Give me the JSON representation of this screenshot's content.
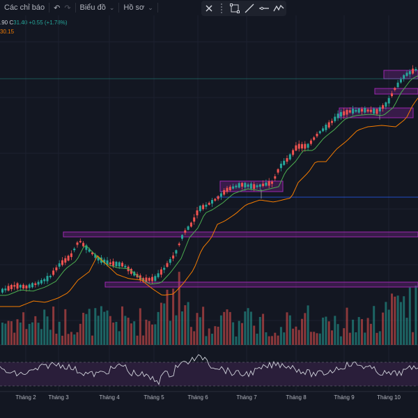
{
  "toolbar": {
    "indicators_label": "Các chỉ báo",
    "undo_icon": "undo-icon",
    "redo_icon": "redo-icon",
    "chart_label": "Biểu đồ",
    "profile_label": "Hồ sơ"
  },
  "drawing_toolbar": {
    "tools": [
      "close-icon",
      "drag-grip-icon",
      "rectangle-icon",
      "trend-line-icon",
      "horizontal-line-icon",
      "path-icon"
    ]
  },
  "legend": {
    "ohlc_text_partial": ".90",
    "close_label": "C",
    "close_value": "31.40",
    "change_text": "+0.55 (+1.78%)",
    "ma_value_partial": "30.15"
  },
  "x_axis": {
    "months": [
      "Tháng 2",
      "Tháng 3",
      "Tháng 4",
      "Tháng 5",
      "Tháng 6",
      "Tháng 7",
      "Tháng 8",
      "Tháng 9",
      "Tháng 10"
    ]
  },
  "colors": {
    "background": "#131722",
    "up": "#26a69a",
    "down": "#ef5350",
    "ma_fast": "#4caf50",
    "ma_slow": "#f57c00",
    "zone": "#9c27b0",
    "rsi": "#d1d4dc",
    "rsi_band": "#2d1f3d",
    "hline": "#2962ff"
  },
  "chart_data": {
    "type": "candlestick",
    "x": [
      "Tháng 2",
      "Tháng 3",
      "Tháng 4",
      "Tháng 5",
      "Tháng 6",
      "Tháng 7",
      "Tháng 8",
      "Tháng 9",
      "Tháng 10"
    ],
    "series": [
      {
        "values": [
          14.0,
          17.5,
          16.0,
          15.5,
          21.5,
          24.0,
          27.5,
          29.0,
          31.4
        ]
      },
      {
        "name": "MA",
        "values": [
          13.5,
          15.0,
          16.0,
          15.8,
          18.0,
          22.5,
          25.5,
          28.0,
          30.15
        ]
      }
    ],
    "last_close": 31.4,
    "indicators": [
      "MA",
      "RSI"
    ],
    "grid": true
  }
}
